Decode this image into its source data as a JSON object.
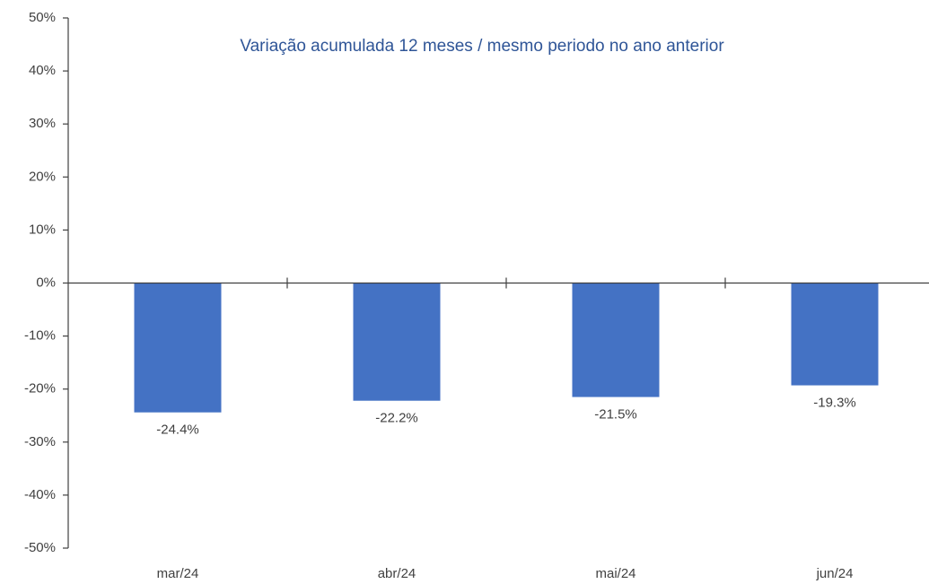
{
  "chart_data": {
    "type": "bar",
    "title": "Variação acumulada 12 meses / mesmo periodo no ano anterior",
    "categories": [
      "mar/24",
      "abr/24",
      "mai/24",
      "jun/24"
    ],
    "values": [
      -24.4,
      -22.2,
      -21.5,
      -19.3
    ],
    "value_labels": [
      "-24.4%",
      "-22.2%",
      "-21.5%",
      "-19.3%"
    ],
    "color": "#4472c4",
    "ylim": [
      -50,
      50
    ],
    "yticks": [
      {
        "value": -50,
        "label": "-50%"
      },
      {
        "value": -40,
        "label": "-40%"
      },
      {
        "value": -30,
        "label": "-30%"
      },
      {
        "value": -20,
        "label": "-20%"
      },
      {
        "value": -10,
        "label": "-10%"
      },
      {
        "value": 0,
        "label": "0%"
      },
      {
        "value": 10,
        "label": "10%"
      },
      {
        "value": 20,
        "label": "20%"
      },
      {
        "value": 30,
        "label": "30%"
      },
      {
        "value": 40,
        "label": "40%"
      },
      {
        "value": 50,
        "label": "50%"
      }
    ],
    "grid": false
  }
}
